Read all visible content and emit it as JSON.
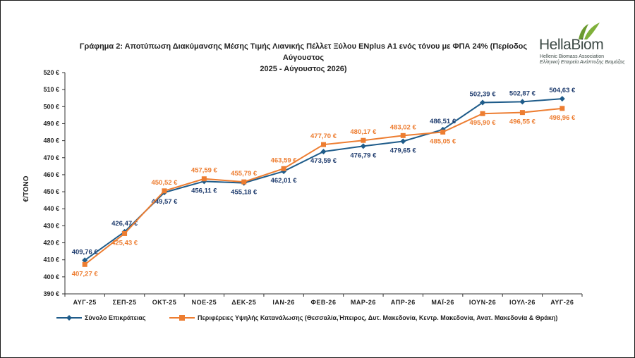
{
  "title_line1": "Γράφημα 2: Αποτύπωση Διακύμανσης Μέσης Τιμής Λιανικής Πέλλετ Ξύλου ENplus A1 ενός τόνου με ΦΠΑ 24% (Περίοδος Αύγουστος",
  "title_line2": "2025 - Αύγουστος 2026)",
  "logo": {
    "name": "HellaBiom",
    "tagline_en": "Hellenic Biomass Association",
    "tagline_gr": "Ελληνική Εταιρεία Ανάπτυξης Βιομάζας",
    "icon": "leaf-icon",
    "color": "#6a9a2e"
  },
  "chart_data": {
    "type": "line",
    "title": "Γράφημα 2: Αποτύπωση Διακύμανσης Μέσης Τιμής Λιανικής Πέλλετ Ξύλου ENplus A1 ενός τόνου με ΦΠΑ 24% (Περίοδος Αύγουστος 2025 - Αύγουστος 2026)",
    "ylabel": "€/ΤΟΝΟ",
    "xlabel": "",
    "ylim": [
      390,
      520
    ],
    "ytick_step": 10,
    "categories": [
      "ΑΥΓ-25",
      "ΣΕΠ-25",
      "ΟΚΤ-25",
      "ΝΟΕ-25",
      "ΔΕΚ-25",
      "ΙΑΝ-26",
      "ΦΕΒ-26",
      "ΜΑΡ-26",
      "ΑΠΡ-26",
      "ΜΑΪ-26",
      "ΙΟΥΝ-26",
      "ΙΟΥΛ-26",
      "ΑΥΓ-26"
    ],
    "legend_position": "bottom",
    "grid": false,
    "series": [
      {
        "name": "Σύνολο Επικράτειας",
        "color": "#1f5c8a",
        "label_color": "#1f3c6e",
        "marker": "diamond",
        "values": [
          409.76,
          426.47,
          449.57,
          456.11,
          455.18,
          462.01,
          473.59,
          476.79,
          479.65,
          486.51,
          502.39,
          502.87,
          504.63
        ],
        "labels": [
          "409,76 €",
          "426,47 €",
          "449,57 €",
          "456,11 €",
          "455,18 €",
          "462,01 €",
          "473,59 €",
          "476,79 €",
          "479,65 €",
          "486,51 €",
          "502,39 €",
          "502,87 €",
          "504,63 €"
        ],
        "label_pos": [
          "above",
          "above",
          "below",
          "below",
          "below",
          "below",
          "below",
          "below",
          "below",
          "above",
          "above",
          "above",
          "above"
        ]
      },
      {
        "name": "Περιφέρειες Υψηλής Κατανάλωσης (Θεσσαλία,Ήπειρος, Δυτ. Μακεδονία, Κεντρ. Μακεδονία, Ανατ. Μακεδονία & Θράκη)",
        "color": "#ed7d31",
        "label_color": "#ed7d31",
        "marker": "square",
        "values": [
          407.27,
          425.43,
          450.52,
          457.59,
          455.79,
          463.59,
          477.7,
          480.17,
          483.02,
          485.05,
          495.9,
          496.55,
          498.96
        ],
        "labels": [
          "407,27 €",
          "425,43 €",
          "450,52 €",
          "457,59 €",
          "455,79 €",
          "463,59 €",
          "477,70 €",
          "480,17 €",
          "483,02 €",
          "485,05 €",
          "495,90 €",
          "496,55 €",
          "498,96 €"
        ],
        "label_pos": [
          "below",
          "below",
          "above",
          "above",
          "above",
          "above",
          "above",
          "above",
          "above",
          "below",
          "below",
          "below",
          "below"
        ]
      }
    ],
    "ytick_format_suffix": " €"
  }
}
